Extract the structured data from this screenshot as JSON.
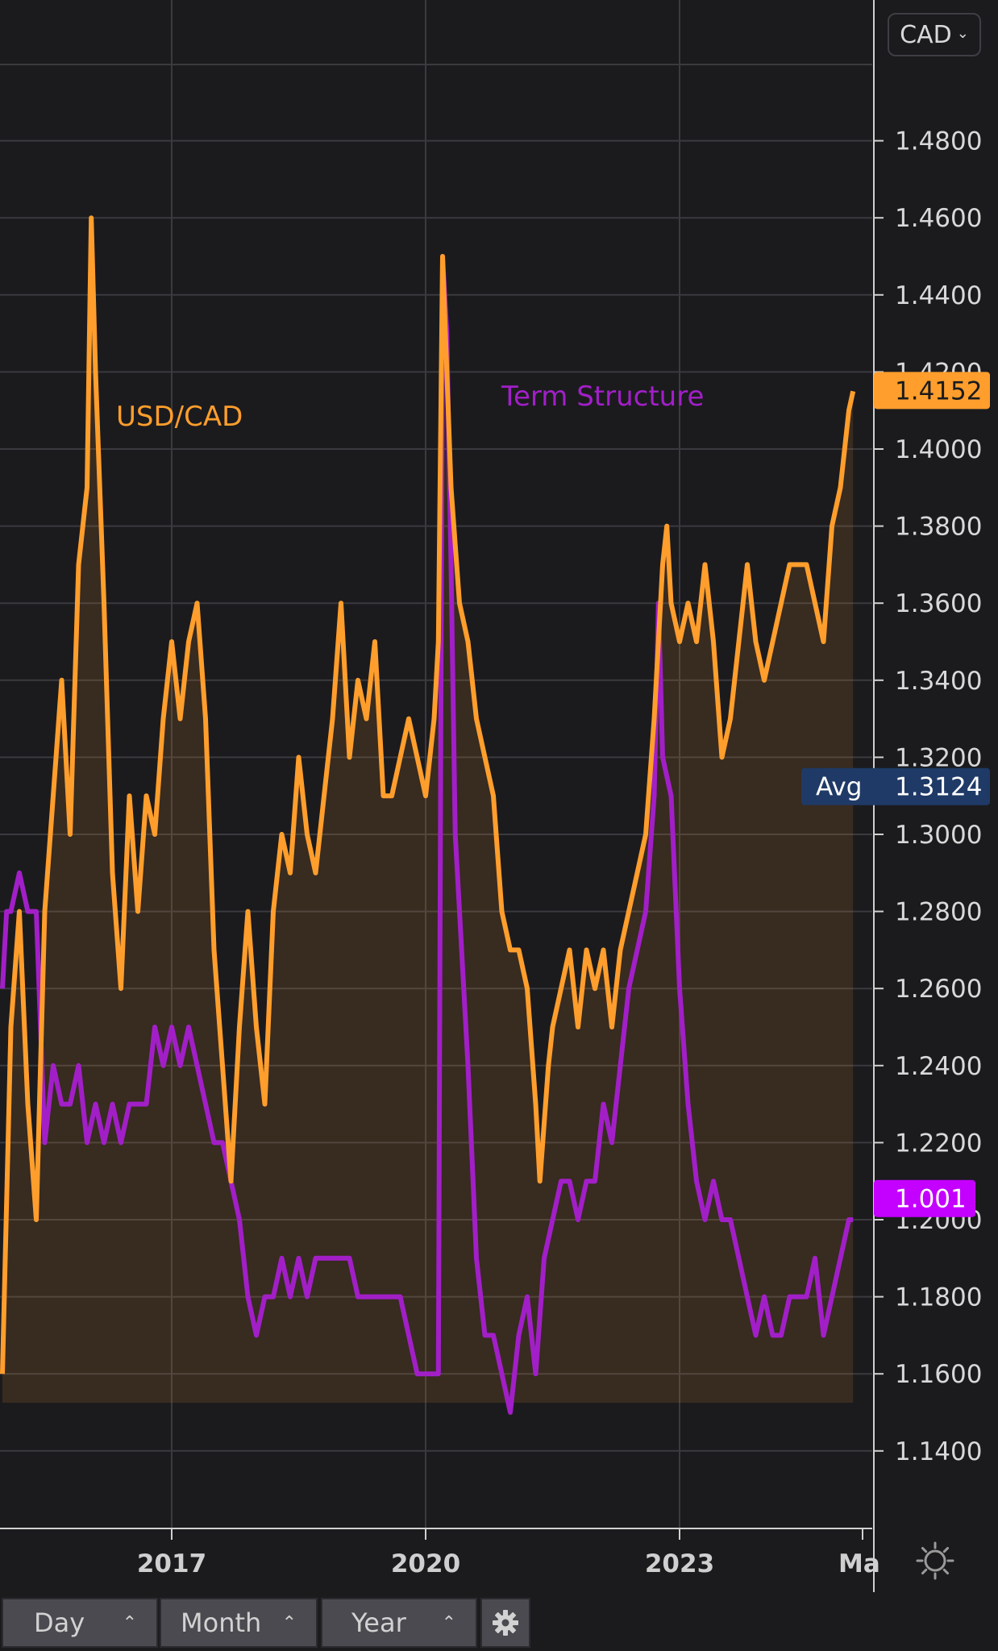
{
  "currency_selector": {
    "value": "CAD"
  },
  "toolbar": {
    "buttons": [
      {
        "label": "Day"
      },
      {
        "label": "Month"
      },
      {
        "label": "Year"
      }
    ]
  },
  "colors": {
    "background": "#1b1b1e",
    "usdcad": "#ff9e2c",
    "term_structure": "#a21fc8",
    "avg_tag": "#1f3a66",
    "current_tag": "#ff9e2c",
    "term_tag": "#c400ff",
    "grid": "#3a3a3f"
  },
  "icons": {
    "settings": "gear-icon",
    "chart_settings": "sun-gear-icon"
  },
  "chart_data": {
    "type": "line",
    "x_ticks": [
      "2017",
      "2020",
      "2023",
      "Ma"
    ],
    "y_ticks": [
      "1.1400",
      "1.1600",
      "1.1800",
      "1.2000",
      "1.2200",
      "1.2400",
      "1.2600",
      "1.2800",
      "1.3000",
      "1.3200",
      "1.3400",
      "1.3600",
      "1.3800",
      "1.4000",
      "1.4200",
      "1.4400",
      "1.4600",
      "1.4800"
    ],
    "ylim": [
      1.12,
      1.5
    ],
    "xlim": [
      2015.0,
      2025.3
    ],
    "grid": true,
    "series": [
      {
        "name": "USD/CAD",
        "fill": "area",
        "points": [
          [
            2015.0,
            1.16
          ],
          [
            2015.1,
            1.25
          ],
          [
            2015.2,
            1.28
          ],
          [
            2015.3,
            1.23
          ],
          [
            2015.4,
            1.2
          ],
          [
            2015.5,
            1.28
          ],
          [
            2015.6,
            1.31
          ],
          [
            2015.7,
            1.34
          ],
          [
            2015.8,
            1.3
          ],
          [
            2015.9,
            1.37
          ],
          [
            2016.0,
            1.39
          ],
          [
            2016.05,
            1.46
          ],
          [
            2016.1,
            1.42
          ],
          [
            2016.2,
            1.36
          ],
          [
            2016.3,
            1.29
          ],
          [
            2016.4,
            1.26
          ],
          [
            2016.5,
            1.31
          ],
          [
            2016.6,
            1.28
          ],
          [
            2016.7,
            1.31
          ],
          [
            2016.8,
            1.3
          ],
          [
            2016.9,
            1.33
          ],
          [
            2017.0,
            1.35
          ],
          [
            2017.1,
            1.33
          ],
          [
            2017.2,
            1.35
          ],
          [
            2017.3,
            1.36
          ],
          [
            2017.4,
            1.33
          ],
          [
            2017.5,
            1.27
          ],
          [
            2017.6,
            1.24
          ],
          [
            2017.7,
            1.21
          ],
          [
            2017.8,
            1.25
          ],
          [
            2017.9,
            1.28
          ],
          [
            2018.0,
            1.25
          ],
          [
            2018.1,
            1.23
          ],
          [
            2018.2,
            1.28
          ],
          [
            2018.3,
            1.3
          ],
          [
            2018.4,
            1.29
          ],
          [
            2018.5,
            1.32
          ],
          [
            2018.6,
            1.3
          ],
          [
            2018.7,
            1.29
          ],
          [
            2018.8,
            1.31
          ],
          [
            2018.9,
            1.33
          ],
          [
            2019.0,
            1.36
          ],
          [
            2019.1,
            1.32
          ],
          [
            2019.2,
            1.34
          ],
          [
            2019.3,
            1.33
          ],
          [
            2019.4,
            1.35
          ],
          [
            2019.5,
            1.31
          ],
          [
            2019.6,
            1.31
          ],
          [
            2019.7,
            1.32
          ],
          [
            2019.8,
            1.33
          ],
          [
            2019.9,
            1.32
          ],
          [
            2020.0,
            1.31
          ],
          [
            2020.1,
            1.33
          ],
          [
            2020.15,
            1.35
          ],
          [
            2020.2,
            1.45
          ],
          [
            2020.25,
            1.42
          ],
          [
            2020.3,
            1.39
          ],
          [
            2020.4,
            1.36
          ],
          [
            2020.5,
            1.35
          ],
          [
            2020.6,
            1.33
          ],
          [
            2020.7,
            1.32
          ],
          [
            2020.8,
            1.31
          ],
          [
            2020.9,
            1.28
          ],
          [
            2021.0,
            1.27
          ],
          [
            2021.1,
            1.27
          ],
          [
            2021.2,
            1.26
          ],
          [
            2021.3,
            1.23
          ],
          [
            2021.35,
            1.21
          ],
          [
            2021.45,
            1.24
          ],
          [
            2021.5,
            1.25
          ],
          [
            2021.6,
            1.26
          ],
          [
            2021.7,
            1.27
          ],
          [
            2021.8,
            1.25
          ],
          [
            2021.9,
            1.27
          ],
          [
            2022.0,
            1.26
          ],
          [
            2022.1,
            1.27
          ],
          [
            2022.2,
            1.25
          ],
          [
            2022.3,
            1.27
          ],
          [
            2022.4,
            1.28
          ],
          [
            2022.5,
            1.29
          ],
          [
            2022.6,
            1.3
          ],
          [
            2022.7,
            1.33
          ],
          [
            2022.8,
            1.37
          ],
          [
            2022.85,
            1.38
          ],
          [
            2022.9,
            1.36
          ],
          [
            2023.0,
            1.35
          ],
          [
            2023.1,
            1.36
          ],
          [
            2023.2,
            1.35
          ],
          [
            2023.3,
            1.37
          ],
          [
            2023.4,
            1.35
          ],
          [
            2023.5,
            1.32
          ],
          [
            2023.6,
            1.33
          ],
          [
            2023.7,
            1.35
          ],
          [
            2023.8,
            1.37
          ],
          [
            2023.9,
            1.35
          ],
          [
            2024.0,
            1.34
          ],
          [
            2024.1,
            1.35
          ],
          [
            2024.2,
            1.36
          ],
          [
            2024.3,
            1.37
          ],
          [
            2024.4,
            1.37
          ],
          [
            2024.5,
            1.37
          ],
          [
            2024.6,
            1.36
          ],
          [
            2024.7,
            1.35
          ],
          [
            2024.8,
            1.38
          ],
          [
            2024.9,
            1.39
          ],
          [
            2025.0,
            1.41
          ],
          [
            2025.05,
            1.415
          ]
        ]
      },
      {
        "name": "Term Structure",
        "fill": "none",
        "points": [
          [
            2015.0,
            1.26
          ],
          [
            2015.05,
            1.28
          ],
          [
            2015.1,
            1.28
          ],
          [
            2015.2,
            1.29
          ],
          [
            2015.3,
            1.28
          ],
          [
            2015.4,
            1.28
          ],
          [
            2015.5,
            1.22
          ],
          [
            2015.6,
            1.24
          ],
          [
            2015.7,
            1.23
          ],
          [
            2015.8,
            1.23
          ],
          [
            2015.9,
            1.24
          ],
          [
            2016.0,
            1.22
          ],
          [
            2016.1,
            1.23
          ],
          [
            2016.2,
            1.22
          ],
          [
            2016.3,
            1.23
          ],
          [
            2016.4,
            1.22
          ],
          [
            2016.5,
            1.23
          ],
          [
            2016.6,
            1.23
          ],
          [
            2016.7,
            1.23
          ],
          [
            2016.8,
            1.25
          ],
          [
            2016.9,
            1.24
          ],
          [
            2017.0,
            1.25
          ],
          [
            2017.1,
            1.24
          ],
          [
            2017.2,
            1.25
          ],
          [
            2017.3,
            1.24
          ],
          [
            2017.4,
            1.23
          ],
          [
            2017.5,
            1.22
          ],
          [
            2017.6,
            1.22
          ],
          [
            2017.7,
            1.21
          ],
          [
            2017.8,
            1.2
          ],
          [
            2017.9,
            1.18
          ],
          [
            2018.0,
            1.17
          ],
          [
            2018.1,
            1.18
          ],
          [
            2018.2,
            1.18
          ],
          [
            2018.3,
            1.19
          ],
          [
            2018.4,
            1.18
          ],
          [
            2018.5,
            1.19
          ],
          [
            2018.6,
            1.18
          ],
          [
            2018.7,
            1.19
          ],
          [
            2018.8,
            1.19
          ],
          [
            2018.9,
            1.19
          ],
          [
            2019.0,
            1.19
          ],
          [
            2019.1,
            1.19
          ],
          [
            2019.2,
            1.18
          ],
          [
            2019.3,
            1.18
          ],
          [
            2019.4,
            1.18
          ],
          [
            2019.5,
            1.18
          ],
          [
            2019.6,
            1.18
          ],
          [
            2019.7,
            1.18
          ],
          [
            2019.8,
            1.17
          ],
          [
            2019.9,
            1.16
          ],
          [
            2020.0,
            1.16
          ],
          [
            2020.1,
            1.16
          ],
          [
            2020.15,
            1.16
          ],
          [
            2020.2,
            1.45
          ],
          [
            2020.25,
            1.43
          ],
          [
            2020.3,
            1.37
          ],
          [
            2020.35,
            1.3
          ],
          [
            2020.4,
            1.28
          ],
          [
            2020.5,
            1.24
          ],
          [
            2020.6,
            1.19
          ],
          [
            2020.7,
            1.17
          ],
          [
            2020.8,
            1.17
          ],
          [
            2020.9,
            1.16
          ],
          [
            2021.0,
            1.15
          ],
          [
            2021.1,
            1.17
          ],
          [
            2021.2,
            1.18
          ],
          [
            2021.3,
            1.16
          ],
          [
            2021.4,
            1.19
          ],
          [
            2021.5,
            1.2
          ],
          [
            2021.6,
            1.21
          ],
          [
            2021.7,
            1.21
          ],
          [
            2021.8,
            1.2
          ],
          [
            2021.9,
            1.21
          ],
          [
            2022.0,
            1.21
          ],
          [
            2022.1,
            1.23
          ],
          [
            2022.2,
            1.22
          ],
          [
            2022.3,
            1.24
          ],
          [
            2022.4,
            1.26
          ],
          [
            2022.5,
            1.27
          ],
          [
            2022.6,
            1.28
          ],
          [
            2022.7,
            1.31
          ],
          [
            2022.75,
            1.36
          ],
          [
            2022.8,
            1.32
          ],
          [
            2022.9,
            1.31
          ],
          [
            2023.0,
            1.26
          ],
          [
            2023.1,
            1.23
          ],
          [
            2023.2,
            1.21
          ],
          [
            2023.3,
            1.2
          ],
          [
            2023.4,
            1.21
          ],
          [
            2023.5,
            1.2
          ],
          [
            2023.6,
            1.2
          ],
          [
            2023.7,
            1.19
          ],
          [
            2023.8,
            1.18
          ],
          [
            2023.9,
            1.17
          ],
          [
            2024.0,
            1.18
          ],
          [
            2024.1,
            1.17
          ],
          [
            2024.2,
            1.17
          ],
          [
            2024.3,
            1.18
          ],
          [
            2024.4,
            1.18
          ],
          [
            2024.5,
            1.18
          ],
          [
            2024.6,
            1.19
          ],
          [
            2024.7,
            1.17
          ],
          [
            2024.8,
            1.18
          ],
          [
            2024.9,
            1.19
          ],
          [
            2025.0,
            1.2
          ],
          [
            2025.05,
            1.2
          ]
        ]
      }
    ],
    "annotations": [
      {
        "text": "USD/CAD",
        "color": "#ff9e2c"
      },
      {
        "text": "Term Structure",
        "color": "#a21fc8"
      }
    ],
    "tags": [
      {
        "label": "",
        "value": "1.4152",
        "y": 1.4152,
        "kind": "current"
      },
      {
        "label": "Avg",
        "value": "1.3124",
        "y": 1.3124,
        "kind": "avg"
      },
      {
        "label": "",
        "value": "1.001",
        "y": 1.2055,
        "kind": "term"
      }
    ]
  }
}
